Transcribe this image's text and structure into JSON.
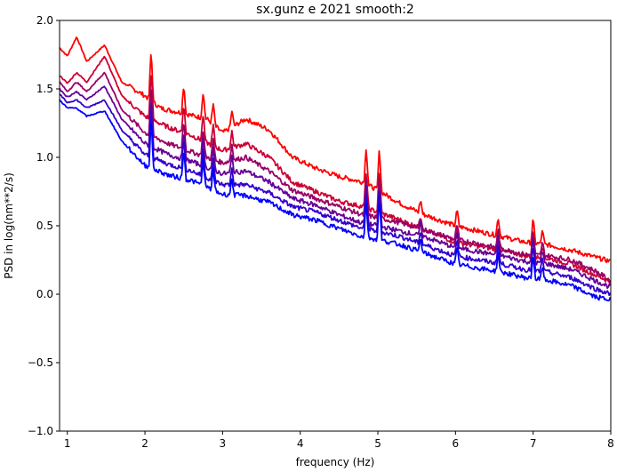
{
  "chart_data": {
    "type": "line",
    "title": "sx.gunz e 2021 smooth:2",
    "xlabel": "frequency (Hz)",
    "ylabel": "PSD in log(nm**2/s)",
    "xlim": [
      0.9,
      8
    ],
    "ylim": [
      -1.0,
      2.0
    ],
    "xticks": [
      1,
      2,
      3,
      4,
      5,
      6,
      7,
      8
    ],
    "xtick_labels": [
      "1",
      "2",
      "3",
      "4",
      "5",
      "6",
      "7",
      "8"
    ],
    "yticks": [
      -1.0,
      -0.5,
      0.0,
      0.5,
      1.0,
      1.5,
      2.0
    ],
    "ytick_labels": [
      "−1.0",
      "−0.5",
      "0.0",
      "0.5",
      "1.0",
      "1.5",
      "2.0"
    ],
    "grid": false,
    "legend": "none",
    "series": [
      {
        "color": "#ff0000",
        "values": [
          [
            0.9,
            1.8
          ],
          [
            1.0,
            1.74
          ],
          [
            1.12,
            1.88
          ],
          [
            1.25,
            1.7
          ],
          [
            1.48,
            1.82
          ],
          [
            1.7,
            1.55
          ],
          [
            2.0,
            1.45
          ],
          [
            2.2,
            1.36
          ],
          [
            2.5,
            1.32
          ],
          [
            2.8,
            1.28
          ],
          [
            3.0,
            1.18
          ],
          [
            3.3,
            1.28
          ],
          [
            3.6,
            1.2
          ],
          [
            3.9,
            1.0
          ],
          [
            4.2,
            0.92
          ],
          [
            4.5,
            0.86
          ],
          [
            4.8,
            0.82
          ],
          [
            5.0,
            0.76
          ],
          [
            5.3,
            0.66
          ],
          [
            5.6,
            0.58
          ],
          [
            6.0,
            0.5
          ],
          [
            6.3,
            0.46
          ],
          [
            6.6,
            0.42
          ],
          [
            6.9,
            0.38
          ],
          [
            7.2,
            0.36
          ],
          [
            7.5,
            0.32
          ],
          [
            7.8,
            0.27
          ],
          [
            8.0,
            0.24
          ]
        ]
      },
      {
        "color": "#cc0033",
        "values": [
          [
            0.9,
            1.6
          ],
          [
            1.0,
            1.54
          ],
          [
            1.12,
            1.62
          ],
          [
            1.25,
            1.55
          ],
          [
            1.48,
            1.74
          ],
          [
            1.7,
            1.45
          ],
          [
            2.0,
            1.3
          ],
          [
            2.3,
            1.22
          ],
          [
            2.6,
            1.16
          ],
          [
            3.0,
            1.05
          ],
          [
            3.3,
            1.1
          ],
          [
            3.6,
            1.0
          ],
          [
            3.9,
            0.82
          ],
          [
            4.2,
            0.75
          ],
          [
            4.5,
            0.68
          ],
          [
            4.8,
            0.64
          ],
          [
            5.0,
            0.6
          ],
          [
            5.3,
            0.54
          ],
          [
            5.6,
            0.47
          ],
          [
            6.0,
            0.38
          ],
          [
            6.3,
            0.35
          ],
          [
            6.6,
            0.32
          ],
          [
            6.9,
            0.28
          ],
          [
            7.2,
            0.26
          ],
          [
            7.5,
            0.22
          ],
          [
            7.8,
            0.14
          ],
          [
            8.0,
            0.09
          ]
        ]
      },
      {
        "color": "#990066",
        "values": [
          [
            0.9,
            1.55
          ],
          [
            1.0,
            1.48
          ],
          [
            1.12,
            1.55
          ],
          [
            1.25,
            1.48
          ],
          [
            1.48,
            1.62
          ],
          [
            1.7,
            1.35
          ],
          [
            2.0,
            1.18
          ],
          [
            2.3,
            1.1
          ],
          [
            2.6,
            1.04
          ],
          [
            3.0,
            0.96
          ],
          [
            3.3,
            1.0
          ],
          [
            3.6,
            0.9
          ],
          [
            3.9,
            0.76
          ],
          [
            4.2,
            0.7
          ],
          [
            4.5,
            0.64
          ],
          [
            4.8,
            0.58
          ],
          [
            5.0,
            0.56
          ],
          [
            5.3,
            0.52
          ],
          [
            5.6,
            0.47
          ],
          [
            6.0,
            0.4
          ],
          [
            6.3,
            0.37
          ],
          [
            6.6,
            0.33
          ],
          [
            6.9,
            0.29
          ],
          [
            7.2,
            0.28
          ],
          [
            7.5,
            0.25
          ],
          [
            7.8,
            0.17
          ],
          [
            8.0,
            0.1
          ]
        ]
      },
      {
        "color": "#660099",
        "values": [
          [
            0.9,
            1.5
          ],
          [
            1.0,
            1.44
          ],
          [
            1.12,
            1.48
          ],
          [
            1.25,
            1.42
          ],
          [
            1.48,
            1.52
          ],
          [
            1.7,
            1.28
          ],
          [
            2.0,
            1.1
          ],
          [
            2.3,
            1.02
          ],
          [
            2.6,
            0.97
          ],
          [
            3.0,
            0.88
          ],
          [
            3.3,
            0.9
          ],
          [
            3.6,
            0.82
          ],
          [
            3.9,
            0.7
          ],
          [
            4.2,
            0.65
          ],
          [
            4.5,
            0.58
          ],
          [
            4.8,
            0.52
          ],
          [
            5.0,
            0.5
          ],
          [
            5.3,
            0.46
          ],
          [
            5.6,
            0.42
          ],
          [
            6.0,
            0.34
          ],
          [
            6.3,
            0.31
          ],
          [
            6.6,
            0.28
          ],
          [
            6.9,
            0.24
          ],
          [
            7.2,
            0.22
          ],
          [
            7.5,
            0.18
          ],
          [
            7.8,
            0.1
          ],
          [
            8.0,
            0.05
          ]
        ]
      },
      {
        "color": "#3300cc",
        "values": [
          [
            0.9,
            1.46
          ],
          [
            1.0,
            1.4
          ],
          [
            1.12,
            1.42
          ],
          [
            1.25,
            1.36
          ],
          [
            1.48,
            1.42
          ],
          [
            1.7,
            1.2
          ],
          [
            2.0,
            1.02
          ],
          [
            2.3,
            0.95
          ],
          [
            2.6,
            0.9
          ],
          [
            3.0,
            0.8
          ],
          [
            3.3,
            0.8
          ],
          [
            3.6,
            0.74
          ],
          [
            3.9,
            0.64
          ],
          [
            4.2,
            0.6
          ],
          [
            4.5,
            0.54
          ],
          [
            4.8,
            0.48
          ],
          [
            5.0,
            0.46
          ],
          [
            5.3,
            0.42
          ],
          [
            5.6,
            0.36
          ],
          [
            6.0,
            0.28
          ],
          [
            6.3,
            0.25
          ],
          [
            6.6,
            0.22
          ],
          [
            6.9,
            0.18
          ],
          [
            7.2,
            0.16
          ],
          [
            7.5,
            0.12
          ],
          [
            7.8,
            0.04
          ],
          [
            8.0,
            0.0
          ]
        ]
      },
      {
        "color": "#0000ff",
        "values": [
          [
            0.9,
            1.42
          ],
          [
            1.0,
            1.36
          ],
          [
            1.12,
            1.36
          ],
          [
            1.25,
            1.3
          ],
          [
            1.48,
            1.34
          ],
          [
            1.7,
            1.12
          ],
          [
            2.0,
            0.94
          ],
          [
            2.3,
            0.87
          ],
          [
            2.6,
            0.83
          ],
          [
            3.0,
            0.73
          ],
          [
            3.3,
            0.72
          ],
          [
            3.6,
            0.67
          ],
          [
            3.9,
            0.58
          ],
          [
            4.2,
            0.54
          ],
          [
            4.5,
            0.48
          ],
          [
            4.8,
            0.42
          ],
          [
            5.0,
            0.4
          ],
          [
            5.3,
            0.36
          ],
          [
            5.6,
            0.3
          ],
          [
            6.0,
            0.22
          ],
          [
            6.3,
            0.19
          ],
          [
            6.6,
            0.16
          ],
          [
            6.9,
            0.12
          ],
          [
            7.2,
            0.1
          ],
          [
            7.5,
            0.06
          ],
          [
            7.8,
            -0.02
          ],
          [
            8.0,
            -0.04
          ]
        ]
      }
    ],
    "spikes": [
      {
        "x": 2.08,
        "height": 0.38
      },
      {
        "x": 2.5,
        "height": 0.22
      },
      {
        "x": 2.75,
        "height": 0.2
      },
      {
        "x": 2.88,
        "height": 0.15
      },
      {
        "x": 3.12,
        "height": 0.12
      },
      {
        "x": 4.85,
        "height": 0.28
      },
      {
        "x": 5.02,
        "height": 0.32
      },
      {
        "x": 5.55,
        "height": 0.1
      },
      {
        "x": 6.02,
        "height": 0.12
      },
      {
        "x": 6.55,
        "height": 0.14
      },
      {
        "x": 7.0,
        "height": 0.18
      },
      {
        "x": 7.12,
        "height": 0.1
      }
    ]
  }
}
